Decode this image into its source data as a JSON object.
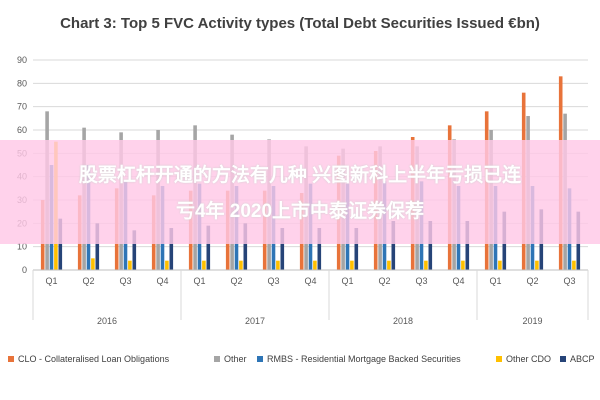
{
  "chart_data": {
    "type": "bar",
    "title": "Chart 3: Top 5 FVC Activity types (Total Debt Securities Issued €bn)",
    "ylim": [
      0,
      90
    ],
    "yticks": [
      0,
      10,
      20,
      30,
      40,
      50,
      60,
      70,
      80,
      90
    ],
    "grid": true,
    "legend_position": "bottom",
    "categories": [
      "Q1",
      "Q2",
      "Q3",
      "Q4",
      "Q1",
      "Q2",
      "Q3",
      "Q4",
      "Q1",
      "Q2",
      "Q3",
      "Q4",
      "Q1",
      "Q2",
      "Q3"
    ],
    "groups": [
      {
        "label": "2016",
        "count": 4
      },
      {
        "label": "2017",
        "count": 4
      },
      {
        "label": "2018",
        "count": 4
      },
      {
        "label": "2019",
        "count": 3
      }
    ],
    "series": [
      {
        "name": "CLO - Collateralised Loan Obligations",
        "color": "#e8733a",
        "values": [
          30,
          32,
          35,
          32,
          34,
          34,
          34,
          33,
          49,
          51,
          57,
          62,
          68,
          76,
          83
        ]
      },
      {
        "name": "Other",
        "color": "#a5a5a5",
        "values": [
          68,
          61,
          59,
          60,
          62,
          58,
          56,
          53,
          52,
          53,
          53,
          56,
          60,
          66,
          67
        ]
      },
      {
        "name": "RMBS - Residential Mortgage Backed Securities",
        "color": "#2e75b6",
        "values": [
          45,
          45,
          38,
          36,
          37,
          36,
          36,
          37,
          37,
          38,
          38,
          36,
          36,
          36,
          35
        ]
      },
      {
        "name": "Other CDO",
        "color": "#ffc000",
        "values": [
          55,
          5,
          4,
          4,
          4,
          4,
          4,
          4,
          4,
          4,
          4,
          4,
          4,
          4,
          4
        ]
      },
      {
        "name": "ABCP",
        "color": "#264478",
        "values": [
          22,
          20,
          17,
          18,
          19,
          20,
          18,
          18,
          18,
          21,
          21,
          21,
          25,
          26,
          25
        ]
      }
    ]
  },
  "overlay": {
    "line1": "股票杠杆开通的方法有几种 兴图新科上半年亏损已连",
    "line2": "亏4年 2020上市中泰证券保荐"
  }
}
